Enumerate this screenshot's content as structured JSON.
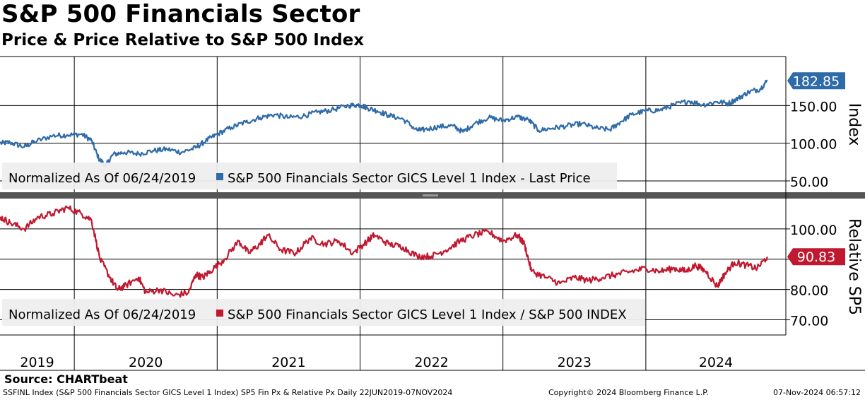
{
  "header": {
    "title": "S&P 500 Financials Sector",
    "subtitle": "Price & Price Relative to S&P 500 Index"
  },
  "colors": {
    "price": "#2e6ba8",
    "relative": "#c0182f",
    "legend_bg": "#eeeeee",
    "grid": "#000000"
  },
  "chart_data": [
    {
      "type": "line",
      "panel": "top",
      "title": "S&P 500 Financials Sector GICS Level 1 Index - Last Price",
      "ylabel": "Index",
      "ylim": [
        35,
        215
      ],
      "yticks": [
        50,
        100,
        150
      ],
      "ytick_labels": [
        "50.00",
        "100.00",
        "150.00"
      ],
      "last_value_label": "182.85",
      "legend": {
        "prefix": "Normalized As Of 06/24/2019",
        "series_label": "S&P 500 Financials Sector GICS Level 1 Index - Last Price"
      },
      "series": [
        {
          "name": "S&P 500 Financials Sector GICS Level 1 Index - Last Price",
          "x": [
            2019.48,
            2019.55,
            2019.65,
            2019.72,
            2019.85,
            2019.95,
            2020.05,
            2020.12,
            2020.17,
            2020.22,
            2020.27,
            2020.35,
            2020.45,
            2020.55,
            2020.65,
            2020.75,
            2020.85,
            2020.92,
            2021.0,
            2021.1,
            2021.2,
            2021.3,
            2021.4,
            2021.5,
            2021.6,
            2021.7,
            2021.8,
            2021.92,
            2022.0,
            2022.05,
            2022.12,
            2022.2,
            2022.3,
            2022.4,
            2022.45,
            2022.55,
            2022.65,
            2022.72,
            2022.8,
            2022.9,
            2023.0,
            2023.1,
            2023.18,
            2023.25,
            2023.35,
            2023.45,
            2023.55,
            2023.65,
            2023.75,
            2023.82,
            2023.9,
            2024.0,
            2024.1,
            2024.2,
            2024.3,
            2024.4,
            2024.5,
            2024.58,
            2024.65,
            2024.72,
            2024.8,
            2024.85
          ],
          "values": [
            100,
            101,
            95,
            102,
            110,
            111,
            112,
            104,
            80,
            70,
            85,
            88,
            86,
            90,
            92,
            88,
            94,
            103,
            112,
            121,
            128,
            134,
            138,
            134,
            136,
            141,
            144,
            150,
            151,
            147,
            143,
            137,
            132,
            117,
            118,
            122,
            123,
            115,
            126,
            134,
            130,
            135,
            131,
            117,
            120,
            123,
            126,
            120,
            118,
            128,
            138,
            143,
            144,
            151,
            156,
            151,
            155,
            153,
            160,
            168,
            172,
            182.85
          ]
        }
      ]
    },
    {
      "type": "line",
      "panel": "bottom",
      "title": "S&P 500 Financials Sector GICS Level 1 Index / S&P 500 INDEX",
      "ylabel": "Relative SP5",
      "ylim": [
        65,
        110
      ],
      "yticks": [
        70,
        80,
        90,
        100
      ],
      "ytick_labels": [
        "70.00",
        "80.00",
        "100.00"
      ],
      "last_value_label": "90.83",
      "legend": {
        "prefix": "Normalized As Of 06/24/2019",
        "series_label": "S&P 500 Financials Sector GICS Level 1 Index / S&P 500 INDEX"
      },
      "series": [
        {
          "name": "S&P 500 Financials Sector GICS Level 1 Index / S&P 500 INDEX",
          "x": [
            2019.48,
            2019.55,
            2019.65,
            2019.75,
            2019.85,
            2019.95,
            2020.05,
            2020.12,
            2020.18,
            2020.25,
            2020.3,
            2020.35,
            2020.45,
            2020.5,
            2020.6,
            2020.7,
            2020.8,
            2020.85,
            2020.9,
            2020.95,
            2021.05,
            2021.15,
            2021.22,
            2021.3,
            2021.35,
            2021.45,
            2021.55,
            2021.65,
            2021.75,
            2021.85,
            2021.95,
            2022.05,
            2022.1,
            2022.2,
            2022.3,
            2022.4,
            2022.5,
            2022.6,
            2022.7,
            2022.8,
            2022.9,
            2023.0,
            2023.1,
            2023.15,
            2023.2,
            2023.3,
            2023.4,
            2023.5,
            2023.6,
            2023.7,
            2023.8,
            2023.9,
            2024.0,
            2024.1,
            2024.2,
            2024.28,
            2024.35,
            2024.42,
            2024.5,
            2024.55,
            2024.62,
            2024.7,
            2024.78,
            2024.85
          ],
          "values": [
            104,
            102,
            100,
            104,
            105,
            107,
            105,
            103,
            90,
            84,
            80,
            81,
            84,
            79,
            80,
            78,
            79,
            85,
            84,
            86,
            90,
            96,
            92,
            95,
            98,
            93,
            92,
            97,
            95,
            96,
            92,
            96,
            98,
            95,
            94,
            91,
            91,
            93,
            96,
            98,
            99,
            96,
            98,
            95,
            86,
            84,
            82,
            84,
            83,
            84,
            85,
            86,
            87,
            86,
            87,
            86,
            88,
            86,
            81,
            85,
            89,
            88,
            87,
            90.83
          ]
        }
      ]
    }
  ],
  "x_axis": {
    "years": [
      "2019",
      "2020",
      "2021",
      "2022",
      "2023",
      "2024"
    ]
  },
  "source": "Source: CHARTbeat",
  "footer": {
    "left": "SSFINL Index (S&P 500 Financials Sector GICS Level 1 Index) SP5 Fin Px & Relative Px  Daily 22JUN2019-07NOV2024",
    "middle": "Copyright© 2024 Bloomberg Finance L.P.",
    "right": "07-Nov-2024 06:57:12"
  }
}
